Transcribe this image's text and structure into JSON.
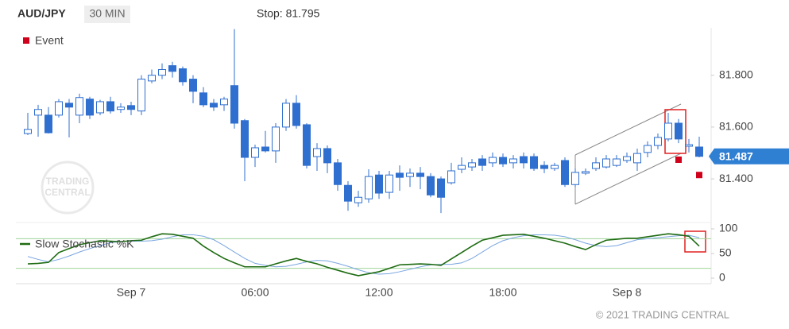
{
  "header": {
    "symbol": "AUD/JPY",
    "interval": "30 MIN",
    "stop": "Stop: 81.795"
  },
  "footer": {
    "copyright": "© 2021 TRADING CENTRAL"
  },
  "chart_data": [
    {
      "type": "candlestick",
      "categories": [
        null,
        null,
        null,
        null,
        null,
        null,
        null,
        null,
        null,
        null,
        "Sep 7",
        null,
        null,
        null,
        null,
        null,
        null,
        null,
        null,
        null,
        null,
        null,
        "06:00",
        null,
        null,
        null,
        null,
        null,
        null,
        null,
        null,
        null,
        null,
        null,
        "12:00",
        null,
        null,
        null,
        null,
        null,
        null,
        null,
        null,
        null,
        null,
        null,
        "18:00",
        null,
        null,
        null,
        null,
        null,
        null,
        null,
        null,
        null,
        null,
        null,
        "Sep 8",
        null,
        null,
        null,
        null,
        null,
        null,
        null
      ],
      "open": [
        81.575,
        81.646,
        81.646,
        81.646,
        81.692,
        81.646,
        81.708,
        81.655,
        81.698,
        81.668,
        81.683,
        81.662,
        81.778,
        81.8,
        81.837,
        81.825,
        81.785,
        81.732,
        81.692,
        81.686,
        81.76,
        81.625,
        81.483,
        81.523,
        81.508,
        81.6,
        81.692,
        81.609,
        81.486,
        81.517,
        81.462,
        81.375,
        81.308,
        81.323,
        81.415,
        81.348,
        81.422,
        81.409,
        81.422,
        81.409,
        81.4,
        81.385,
        81.437,
        81.446,
        81.477,
        81.462,
        81.483,
        81.462,
        81.486,
        81.486,
        81.452,
        81.44,
        81.471,
        81.378,
        81.422,
        81.44,
        81.446,
        81.452,
        81.471,
        81.462,
        81.502,
        81.529,
        81.554,
        81.615,
        81.526,
        81.523
      ],
      "high": [
        81.655,
        81.686,
        81.677,
        81.708,
        81.708,
        81.729,
        81.717,
        81.705,
        81.717,
        81.692,
        81.698,
        81.8,
        81.822,
        81.846,
        81.852,
        81.834,
        81.8,
        81.754,
        81.708,
        81.717,
        81.978,
        81.631,
        81.532,
        81.585,
        81.615,
        81.708,
        81.723,
        81.615,
        81.538,
        81.529,
        81.477,
        81.391,
        81.354,
        81.437,
        81.431,
        81.431,
        81.452,
        81.44,
        81.446,
        81.422,
        81.409,
        81.462,
        81.483,
        81.477,
        81.492,
        81.502,
        81.498,
        81.492,
        81.502,
        81.498,
        81.468,
        81.462,
        81.483,
        81.44,
        81.44,
        81.483,
        81.492,
        81.492,
        81.502,
        81.517,
        81.545,
        81.575,
        81.655,
        81.631,
        81.554,
        81.563
      ],
      "low": [
        81.569,
        81.563,
        81.575,
        81.637,
        81.56,
        81.615,
        81.631,
        81.646,
        81.652,
        81.655,
        81.646,
        81.646,
        81.769,
        81.785,
        81.791,
        81.76,
        81.692,
        81.677,
        81.662,
        81.662,
        81.594,
        81.391,
        81.446,
        81.502,
        81.462,
        81.585,
        81.594,
        81.44,
        81.431,
        81.422,
        81.354,
        81.277,
        81.292,
        81.308,
        81.323,
        81.323,
        81.354,
        81.369,
        81.36,
        81.329,
        81.268,
        81.378,
        81.422,
        81.431,
        81.431,
        81.446,
        81.446,
        81.44,
        81.44,
        81.431,
        81.422,
        81.431,
        81.369,
        81.369,
        81.415,
        81.431,
        81.44,
        81.446,
        81.462,
        81.431,
        81.483,
        81.514,
        81.545,
        81.538,
        81.502,
        81.483
      ],
      "close": [
        81.591,
        81.668,
        81.578,
        81.698,
        81.677,
        81.714,
        81.646,
        81.698,
        81.662,
        81.677,
        81.668,
        81.785,
        81.8,
        81.822,
        81.815,
        81.775,
        81.738,
        81.686,
        81.677,
        81.708,
        81.615,
        81.483,
        81.52,
        81.508,
        81.6,
        81.692,
        81.606,
        81.452,
        81.517,
        81.462,
        81.378,
        81.314,
        81.329,
        81.409,
        81.345,
        81.415,
        81.406,
        81.422,
        81.409,
        81.338,
        81.329,
        81.431,
        81.452,
        81.462,
        81.452,
        81.483,
        81.458,
        81.477,
        81.462,
        81.44,
        81.44,
        81.452,
        81.378,
        81.425,
        81.428,
        81.462,
        81.477,
        81.477,
        81.486,
        81.498,
        81.529,
        81.56,
        81.615,
        81.554,
        81.532,
        81.487
      ],
      "up_color": "#ffffff",
      "down_color": "#2f6fcf",
      "wick_color": "#2f6fcf",
      "ylim": [
        81.25,
        81.98
      ],
      "yticks": [
        {
          "value": 81.4,
          "label": "81.400"
        },
        {
          "value": 81.6,
          "label": "81.600"
        },
        {
          "value": 81.8,
          "label": "81.800"
        }
      ],
      "events": {
        "name": "Event",
        "color": "#d0021b",
        "points": [
          {
            "index": 63,
            "value": 81.474
          },
          {
            "index": 65,
            "value": 81.415
          }
        ]
      },
      "last_price_color": "#2f7fd3"
    },
    {
      "type": "line",
      "series": [
        {
          "name": "Slow Stochastic %K",
          "color": "#1e6b12",
          "values": [
            29,
            30,
            32,
            52,
            60,
            68,
            72,
            76,
            75,
            74,
            76,
            77,
            84,
            90,
            89,
            85,
            81,
            65,
            52,
            40,
            31,
            23,
            23,
            23,
            29,
            35,
            40,
            34,
            29,
            22,
            16,
            10,
            5,
            9,
            13,
            20,
            27,
            28,
            29,
            28,
            26,
            39,
            52,
            65,
            77,
            82,
            87,
            88,
            89,
            85,
            81,
            76,
            71,
            64,
            58,
            68,
            77,
            79,
            81,
            81,
            84,
            87,
            90,
            88,
            85,
            65
          ]
        },
        {
          "color": "#7aa6e0",
          "values": [
            44,
            38,
            33,
            38,
            45,
            53,
            60,
            66,
            72,
            74,
            75,
            75,
            76,
            79,
            84,
            88,
            88,
            85,
            78,
            66,
            53,
            40,
            30,
            26,
            23,
            24,
            28,
            33,
            36,
            35,
            30,
            24,
            17,
            11,
            8,
            9,
            13,
            18,
            23,
            27,
            28,
            28,
            31,
            40,
            53,
            66,
            76,
            82,
            86,
            88,
            88,
            87,
            84,
            78,
            71,
            66,
            64,
            66,
            72,
            78,
            80,
            82,
            84,
            86,
            87,
            82
          ]
        }
      ],
      "levels": [
        20,
        80
      ],
      "level_color": "#9fd49a",
      "ylim": [
        0,
        100
      ],
      "yticks": [
        0,
        50,
        100
      ]
    }
  ]
}
